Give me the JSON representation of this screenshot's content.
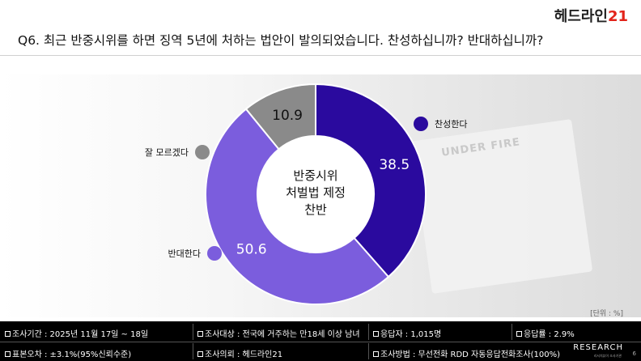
{
  "header": {
    "logo_text": "헤드라인",
    "logo_accent": "21",
    "question": "Q6. 최근 반중시위를 하면 징역 5년에 처하는 법안이 발의되었습니다. 찬성하십니까? 반대하십니까?"
  },
  "background": {
    "sheet_text": "UNDER FIRE"
  },
  "chart_data": {
    "type": "pie",
    "center_label": [
      "반중시위",
      "처벌법 제정",
      "찬반"
    ],
    "slices": [
      {
        "label": "찬성한다",
        "value": 38.5,
        "color": "#2a0a9e"
      },
      {
        "label": "반대한다",
        "value": 50.6,
        "color": "#7b5ddd"
      },
      {
        "label": "잘 모르겠다",
        "value": 10.9,
        "color": "#8a8a8a"
      }
    ],
    "unit_note": "[단위 : %]"
  },
  "footer": {
    "cells": [
      {
        "text": "조사기간 : 2025년 11월 17일 ~ 18일"
      },
      {
        "text": "조사대상 : 전국에 거주하는 만18세 이상 남녀"
      },
      {
        "text": "응답자 : 1,015명"
      },
      {
        "text": "응답률 : 2.9%"
      },
      {
        "text": "표본오차 : ±3.1%(95%신뢰수준)"
      },
      {
        "text": "조사의뢰 : 헤드라인21"
      },
      {
        "text": "조사방법 : 무선전화 RDD 자동응답전화조사(100%)"
      }
    ],
    "brand": "RESEARCH",
    "brand_sub": "리서치뷰이 조사기관",
    "page_number": "6"
  }
}
